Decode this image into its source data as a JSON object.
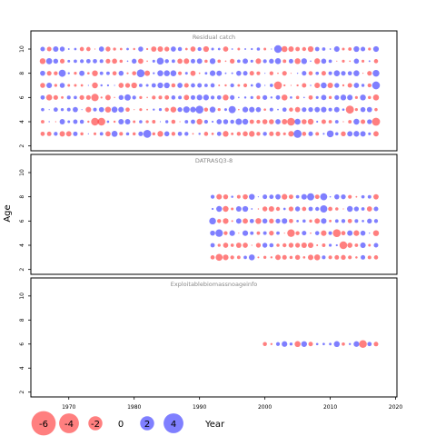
{
  "chart_data": {
    "type": "scatter",
    "ylabel": "Age",
    "xlabel": "",
    "xlim": [
      1964.2,
      2020.2
    ],
    "x_ticks": [
      1970,
      1980,
      1990,
      2000,
      2010,
      2020
    ],
    "ylim": [
      1.6,
      11.5
    ],
    "y_ticks": [
      2,
      4,
      6,
      8,
      10
    ],
    "colors": {
      "positive": "#0000ff",
      "negative": "#ff0000",
      "opacity": 0.5
    },
    "panels": [
      {
        "title": "Residual catch",
        "ages": [
          3,
          4,
          5,
          6,
          7,
          8,
          9,
          10
        ],
        "year_start": 1966,
        "year_end": 2017,
        "seed": 11
      },
      {
        "title": "DATRASQ3-8",
        "ages": [
          3,
          4,
          5,
          6,
          7,
          8
        ],
        "year_start": 1992,
        "year_end": 2017,
        "seed": 37
      },
      {
        "title": "Exploitablebiomassnoageinfo",
        "ages": [
          6
        ],
        "year_start": 2000,
        "year_end": 2017,
        "seed": 71
      }
    ],
    "legend": {
      "values": [
        -6,
        -4,
        -2,
        0,
        2,
        4
      ],
      "labels": [
        "-6",
        "-4",
        "-2",
        "0",
        "2",
        "4"
      ],
      "title": "Year"
    }
  }
}
